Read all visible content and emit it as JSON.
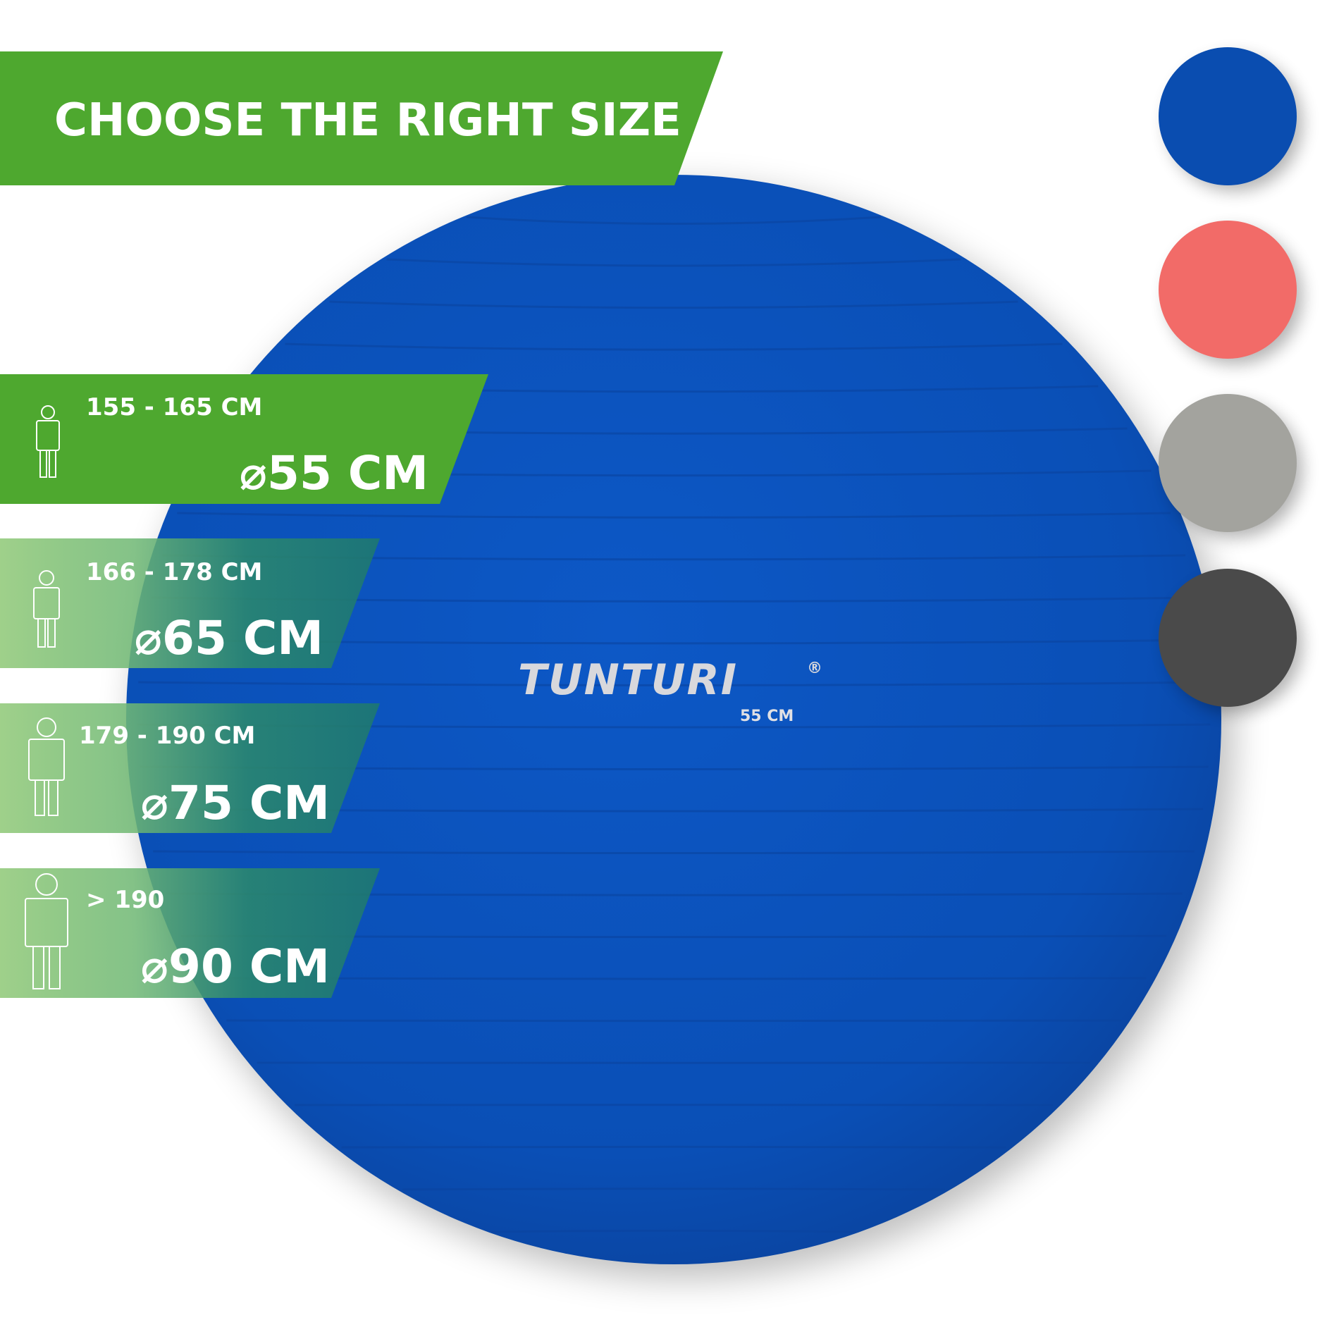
{
  "header": {
    "title": "CHOOSE THE RIGHT SIZE",
    "color": "#4ea82f"
  },
  "product": {
    "brand": "TUNTURI",
    "registered": "®",
    "size_label": "55 CM",
    "ball_color": "#0a50b8"
  },
  "sizes": [
    {
      "height_range": "155 - 165 CM",
      "diameter": "⌀55 CM",
      "icon": "person-icon"
    },
    {
      "height_range": "166 - 178 CM",
      "diameter": "⌀65 CM",
      "icon": "person-icon"
    },
    {
      "height_range": "179 - 190 CM",
      "diameter": "⌀75 CM",
      "icon": "person-icon"
    },
    {
      "height_range": "> 190",
      "diameter": "⌀90 CM",
      "icon": "person-icon"
    }
  ],
  "color_swatches": [
    {
      "name": "blue",
      "color": "#0a4db0"
    },
    {
      "name": "pink",
      "color": "#f26b68"
    },
    {
      "name": "grey",
      "color": "#a3a39e"
    },
    {
      "name": "black",
      "color": "#4a4a4a"
    }
  ]
}
